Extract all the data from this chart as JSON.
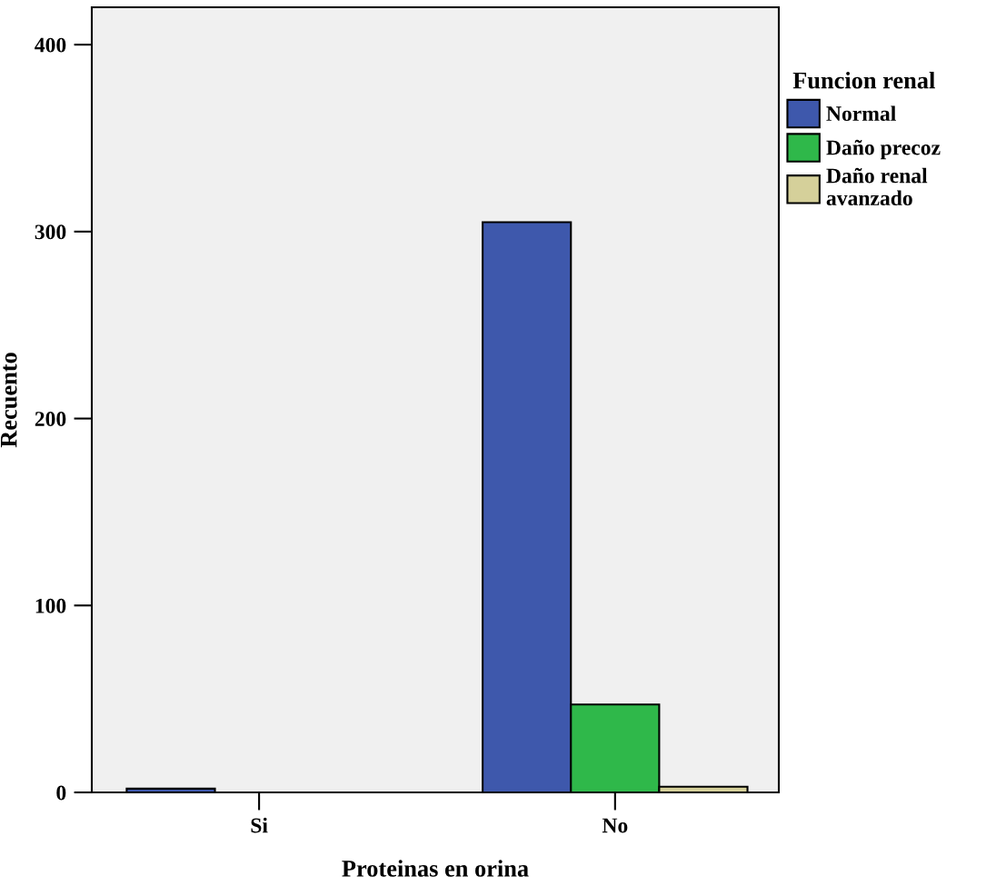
{
  "chart_data": {
    "type": "bar",
    "xlabel": "Proteinas en orina",
    "ylabel": "Recuento",
    "legend_title": "Funcion renal",
    "categories": [
      "Si",
      "No"
    ],
    "series": [
      {
        "name": "Normal",
        "color": "#3e58ac",
        "values": [
          2,
          305
        ]
      },
      {
        "name": "Daño precoz",
        "color": "#2fb84a",
        "values": [
          0,
          47
        ]
      },
      {
        "name": "Daño renal\navanzado",
        "color": "#d5d09a",
        "values": [
          0,
          3
        ]
      }
    ],
    "ylim": [
      0,
      420
    ],
    "yticks": [
      0,
      100,
      200,
      300,
      400
    ],
    "grid": false,
    "legend": "right"
  }
}
